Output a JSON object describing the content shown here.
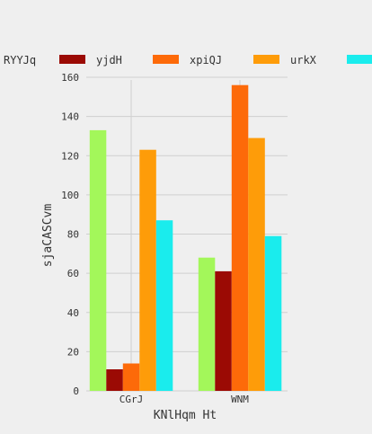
{
  "chart_data": {
    "type": "bar",
    "title": "",
    "xlabel": "KNlHqm Ht",
    "ylabel": "sjaCASCvm",
    "categories": [
      "CGrJ",
      "WNM"
    ],
    "ylim": [
      0,
      160
    ],
    "yticks": [
      0,
      20,
      40,
      60,
      80,
      100,
      120,
      140,
      160
    ],
    "grid": true,
    "legend_position": "top",
    "series": [
      {
        "name": "RYYJq",
        "color": "#a3f75a",
        "values": [
          133,
          68
        ]
      },
      {
        "name": "yjdH",
        "color": "#9b0a04",
        "values": [
          11,
          61
        ]
      },
      {
        "name": "xpiQJ",
        "color": "#fd6a09",
        "values": [
          14,
          156
        ]
      },
      {
        "name": "urkX",
        "color": "#fe9c09",
        "values": [
          123,
          129
        ]
      },
      {
        "name": "",
        "color": "#1aeced",
        "values": [
          87,
          79
        ]
      }
    ]
  }
}
